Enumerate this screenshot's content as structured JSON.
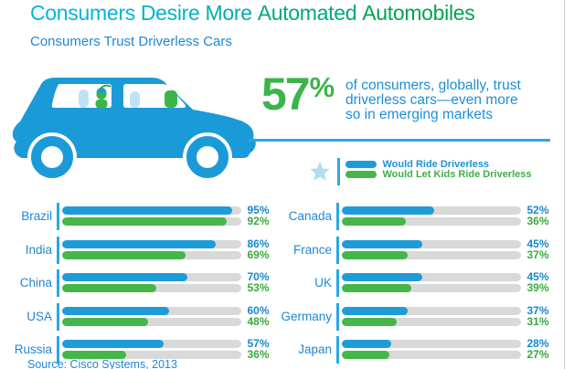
{
  "header": {
    "title": "Consumers Desire More Automated Automobiles",
    "title_word_colors": [
      "#00b6dc",
      "#00b3cb",
      "#00aeae",
      "#00a87e",
      "#00a451"
    ],
    "subtitle": "Consumers Trust Driverless Cars"
  },
  "hero": {
    "car_icon": "blue-minivan-with-kid-passenger",
    "stat_number": "57",
    "stat_symbol": "%",
    "stat_lines": [
      "of consumers, globally, trust",
      "driverless cars—even more",
      "so in emerging markets"
    ]
  },
  "legend": {
    "star_icon": "star-icon",
    "items": [
      {
        "label": "Would Ride Driverless",
        "color": "#1e9cd8",
        "label_color": "#1e93d6"
      },
      {
        "label": "Would Let Kids Ride Driverless",
        "color": "#45b649",
        "label_color": "#3fae47"
      }
    ]
  },
  "chart_data": {
    "type": "bar",
    "orientation": "horizontal",
    "max_value": 100,
    "unit": "%",
    "series": [
      "Would Ride Driverless",
      "Would Let Kids Ride Driverless"
    ],
    "series_colors": [
      "#1e9cd8",
      "#45b649"
    ],
    "track_color": "#d9d9d9",
    "columns": [
      {
        "rows": [
          {
            "country": "Brazil",
            "would_ride": 95,
            "would_let_kids": 92
          },
          {
            "country": "India",
            "would_ride": 86,
            "would_let_kids": 69
          },
          {
            "country": "China",
            "would_ride": 70,
            "would_let_kids": 53
          },
          {
            "country": "USA",
            "would_ride": 60,
            "would_let_kids": 48
          },
          {
            "country": "Russia",
            "would_ride": 57,
            "would_let_kids": 36
          }
        ]
      },
      {
        "rows": [
          {
            "country": "Canada",
            "would_ride": 52,
            "would_let_kids": 36
          },
          {
            "country": "France",
            "would_ride": 45,
            "would_let_kids": 37
          },
          {
            "country": "UK",
            "would_ride": 45,
            "would_let_kids": 39
          },
          {
            "country": "Germany",
            "would_ride": 37,
            "would_let_kids": 31
          },
          {
            "country": "Japan",
            "would_ride": 28,
            "would_let_kids": 27
          }
        ]
      }
    ]
  },
  "source": "Source: Cisco Systems, 2013",
  "colors": {
    "car_blue": "#1b9ad8",
    "seat_light_blue": "#bfe2f6",
    "kid_green": "#3cb44a",
    "stat_green": "#3cb44a",
    "body_text_blue": "#1e8ed8",
    "line_blue": "#2aa9e0",
    "star_blue": "#b3dcf3",
    "edge_border": "#c9c9c9"
  }
}
